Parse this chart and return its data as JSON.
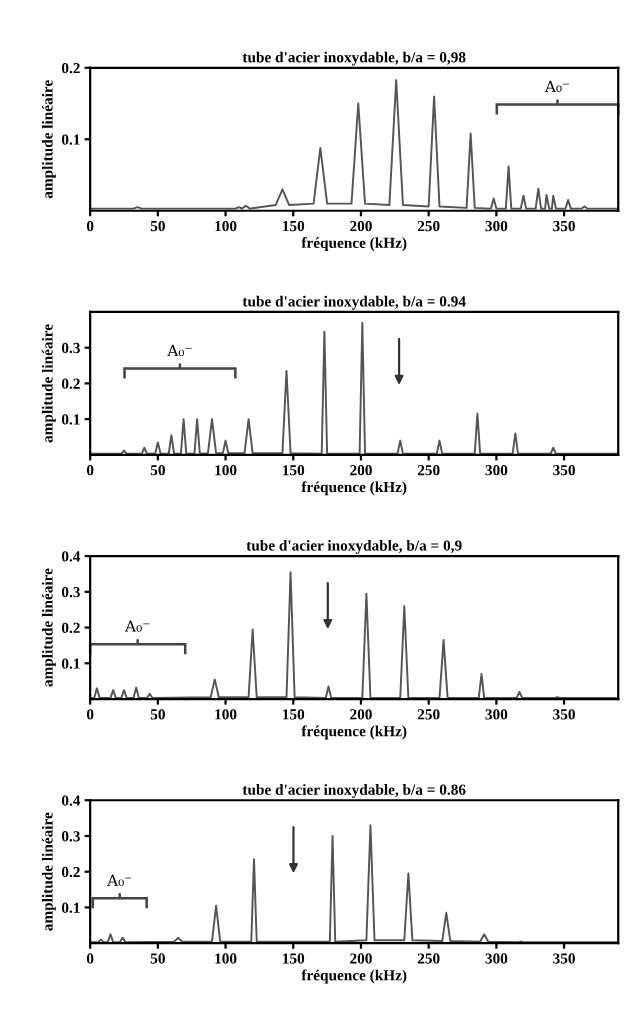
{
  "chart_data": [
    {
      "type": "line",
      "title": "tube d'acier inoxydable, b/a = 0,98",
      "xlabel": "fréquence (kHz)",
      "ylabel": "amplitude linéaire",
      "xlim": [
        0,
        390
      ],
      "xticks": [
        0,
        50,
        100,
        150,
        200,
        250,
        300,
        350
      ],
      "ylim": [
        0,
        0.2
      ],
      "yticks": [
        0.1,
        0.2
      ],
      "grid": false,
      "legend": false,
      "series": [
        {
          "color": "#555555",
          "x": [
            0,
            32,
            35,
            38,
            107,
            110,
            112,
            115,
            118,
            137,
            142,
            147,
            165,
            170,
            175,
            193,
            198,
            203,
            221,
            226,
            231,
            250,
            254,
            258,
            278,
            281,
            284,
            296,
            298,
            300,
            307,
            309,
            311,
            318,
            320,
            322,
            329,
            331,
            333,
            336,
            337,
            339,
            341,
            342,
            344,
            351,
            353,
            355,
            363,
            365,
            367,
            390
          ],
          "values": [
            0.003,
            0.003,
            0.005,
            0.003,
            0.003,
            0.005,
            0.003,
            0.007,
            0.003,
            0.008,
            0.03,
            0.008,
            0.01,
            0.088,
            0.01,
            0.01,
            0.15,
            0.01,
            0.008,
            0.183,
            0.008,
            0.006,
            0.16,
            0.006,
            0.004,
            0.108,
            0.004,
            0.003,
            0.017,
            0.003,
            0.003,
            0.062,
            0.003,
            0.003,
            0.021,
            0.003,
            0.003,
            0.031,
            0.003,
            0.003,
            0.022,
            0.003,
            0.003,
            0.021,
            0.003,
            0.003,
            0.015,
            0.003,
            0.003,
            0.006,
            0.003,
            0.003
          ]
        }
      ],
      "annotations": [
        "A₀⁻"
      ]
    },
    {
      "type": "line",
      "title": "tube d'acier inoxydable, b/a = 0.94",
      "xlabel": "fréquence (kHz)",
      "ylabel": "amplitude linéaire",
      "xlim": [
        0,
        390
      ],
      "xticks": [
        0,
        50,
        100,
        150,
        200,
        250,
        300,
        350
      ],
      "ylim": [
        0,
        0.4
      ],
      "yticks": [
        0.1,
        0.2,
        0.3
      ],
      "grid": false,
      "legend": false,
      "series": [
        {
          "color": "#555555",
          "x": [
            0,
            23,
            25,
            27,
            38,
            40,
            42,
            48,
            50,
            52,
            58,
            60,
            62,
            67,
            69,
            71,
            77,
            79,
            81,
            87,
            90,
            93,
            98,
            100,
            102,
            114,
            117,
            120,
            142,
            145,
            148,
            171,
            173,
            175,
            199,
            201,
            203,
            227,
            229,
            231,
            256,
            258,
            260,
            284,
            286,
            288,
            312,
            314,
            316,
            340,
            342,
            344,
            390
          ],
          "values": [
            0.003,
            0.003,
            0.012,
            0.003,
            0.003,
            0.02,
            0.003,
            0.003,
            0.035,
            0.003,
            0.003,
            0.055,
            0.003,
            0.003,
            0.1,
            0.003,
            0.003,
            0.1,
            0.003,
            0.005,
            0.1,
            0.005,
            0.005,
            0.04,
            0.005,
            0.005,
            0.1,
            0.005,
            0.005,
            0.235,
            0.005,
            0.003,
            0.345,
            0.003,
            0.003,
            0.37,
            0.003,
            0.003,
            0.04,
            0.003,
            0.003,
            0.04,
            0.003,
            0.003,
            0.115,
            0.003,
            0.003,
            0.06,
            0.003,
            0.003,
            0.02,
            0.003,
            0.003
          ]
        }
      ],
      "annotations": [
        "A₀⁻"
      ]
    },
    {
      "type": "line",
      "title": "tube d'acier inoxydable, b/a = 0,9",
      "xlabel": "fréquence (kHz)",
      "ylabel": "amplitude linéaire",
      "xlim": [
        0,
        390
      ],
      "xticks": [
        0,
        50,
        100,
        150,
        200,
        250,
        300,
        350
      ],
      "ylim": [
        0,
        0.4
      ],
      "yticks": [
        0.1,
        0.2,
        0.3,
        0.4
      ],
      "grid": false,
      "legend": false,
      "series": [
        {
          "color": "#555555",
          "x": [
            0,
            3,
            5,
            7,
            15,
            17,
            19,
            23,
            25,
            27,
            32,
            34,
            36,
            42,
            44,
            46,
            89,
            92,
            95,
            117,
            120,
            123,
            145,
            148,
            151,
            174,
            176,
            178,
            201,
            204,
            207,
            229,
            232,
            235,
            258,
            261,
            264,
            287,
            289,
            291,
            315,
            317,
            319,
            343,
            345,
            347,
            390
          ],
          "values": [
            0.003,
            0.003,
            0.03,
            0.003,
            0.003,
            0.025,
            0.003,
            0.003,
            0.025,
            0.003,
            0.003,
            0.032,
            0.003,
            0.003,
            0.015,
            0.003,
            0.005,
            0.055,
            0.005,
            0.005,
            0.195,
            0.005,
            0.005,
            0.355,
            0.005,
            0.003,
            0.035,
            0.003,
            0.003,
            0.295,
            0.003,
            0.003,
            0.26,
            0.003,
            0.003,
            0.165,
            0.003,
            0.003,
            0.07,
            0.003,
            0.003,
            0.02,
            0.003,
            0.003,
            0.005,
            0.003,
            0.003
          ]
        }
      ],
      "annotations": [
        "A₀⁻"
      ]
    },
    {
      "type": "line",
      "title": "tube d'acier inoxydable, b/a = 0.86",
      "xlabel": "fréquence (kHz)",
      "ylabel": "amplitude linéaire",
      "xlim": [
        0,
        390
      ],
      "xticks": [
        0,
        50,
        100,
        150,
        200,
        250,
        300,
        350
      ],
      "ylim": [
        0,
        0.4
      ],
      "yticks": [
        0.1,
        0.2,
        0.3,
        0.4
      ],
      "grid": false,
      "legend": false,
      "series": [
        {
          "color": "#555555",
          "x": [
            0,
            6,
            8,
            10,
            13,
            15,
            17,
            22,
            24,
            26,
            62,
            65,
            68,
            90,
            93,
            96,
            119,
            121,
            123,
            177,
            179,
            181,
            204,
            207,
            210,
            232,
            235,
            238,
            260,
            263,
            266,
            288,
            291,
            294,
            316,
            318,
            320,
            390
          ],
          "values": [
            0.003,
            0.003,
            0.01,
            0.003,
            0.003,
            0.025,
            0.003,
            0.003,
            0.015,
            0.003,
            0.004,
            0.015,
            0.004,
            0.005,
            0.105,
            0.005,
            0.004,
            0.235,
            0.004,
            0.004,
            0.3,
            0.004,
            0.008,
            0.33,
            0.008,
            0.008,
            0.195,
            0.008,
            0.006,
            0.085,
            0.006,
            0.004,
            0.025,
            0.004,
            0.003,
            0.005,
            0.003,
            0.003
          ]
        }
      ],
      "annotations": [
        "A₀⁻"
      ]
    }
  ]
}
